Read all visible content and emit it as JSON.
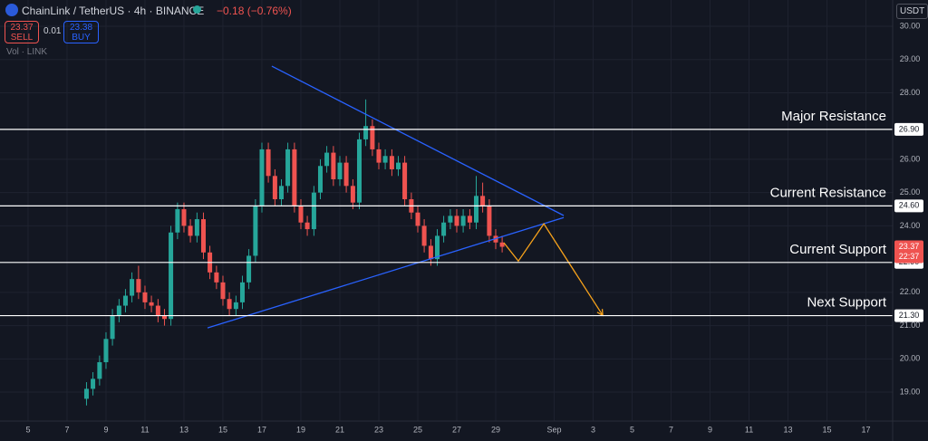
{
  "header": {
    "symbol": "ChainLink / TetherUS · 4h · BINANCE",
    "change": "−0.18 (−0.76%)",
    "sell_price": "23.37",
    "sell": "SELL",
    "spread": "0.01",
    "buy_price": "23.38",
    "buy": "BUY",
    "volume": "Vol · LINK",
    "currency": "USDT",
    "countdown": "22:37"
  },
  "chart_data": {
    "type": "candlestick",
    "x": [
      8,
      8.33,
      8.67,
      9,
      9.33,
      9.67,
      10,
      10.33,
      10.67,
      11,
      11.33,
      11.67,
      12,
      12.33,
      12.67,
      13,
      13.33,
      13.67,
      14,
      14.33,
      14.67,
      15,
      15.33,
      15.67,
      16,
      16.33,
      16.67,
      17,
      17.33,
      17.67,
      18,
      18.33,
      18.67,
      19,
      19.33,
      19.67,
      20,
      20.33,
      20.67,
      21,
      21.33,
      21.67,
      22,
      22.33,
      22.67,
      23,
      23.33,
      23.67,
      24,
      24.33,
      24.67,
      25,
      25.33,
      25.67,
      26,
      26.33,
      26.67,
      27,
      27.33,
      27.67,
      28,
      28.33,
      28.67,
      29,
      29.33
    ],
    "open": [
      18.8,
      19.1,
      19.4,
      19.9,
      20.6,
      21.3,
      21.6,
      21.9,
      22.4,
      22.0,
      21.7,
      21.6,
      21.3,
      21.2,
      23.8,
      24.5,
      24.0,
      23.7,
      24.2,
      23.2,
      22.6,
      22.3,
      21.8,
      21.5,
      21.7,
      22.3,
      23.1,
      24.6,
      26.3,
      25.5,
      24.8,
      25.2,
      26.3,
      24.6,
      24.1,
      23.9,
      25.0,
      25.8,
      26.2,
      25.4,
      25.9,
      25.2,
      24.7,
      26.6,
      27.0,
      26.3,
      25.9,
      26.1,
      25.7,
      25.9,
      24.8,
      24.4,
      24.0,
      23.4,
      23.0,
      23.7,
      24.1,
      24.3,
      24.0,
      24.3,
      24.1,
      24.9,
      24.6,
      23.7,
      23.5
    ],
    "high": [
      19.3,
      19.6,
      20.1,
      20.8,
      21.5,
      21.8,
      22.1,
      22.6,
      22.8,
      22.2,
      21.9,
      21.8,
      21.5,
      24.0,
      24.7,
      24.7,
      24.2,
      24.4,
      24.4,
      23.4,
      22.8,
      22.5,
      22.0,
      21.9,
      22.5,
      23.3,
      24.8,
      26.5,
      26.5,
      25.7,
      25.4,
      26.5,
      26.5,
      24.8,
      24.3,
      25.2,
      26.0,
      26.4,
      26.4,
      26.1,
      26.1,
      25.4,
      26.8,
      27.8,
      27.2,
      26.5,
      26.3,
      26.3,
      26.1,
      26.1,
      25.0,
      24.6,
      24.2,
      23.6,
      23.9,
      24.3,
      24.5,
      24.5,
      24.5,
      24.5,
      25.5,
      25.3,
      24.8,
      23.9,
      23.7
    ],
    "low": [
      18.6,
      18.9,
      19.2,
      19.7,
      20.4,
      21.1,
      21.4,
      21.7,
      21.8,
      21.5,
      21.4,
      21.1,
      21.0,
      21.0,
      23.6,
      23.8,
      23.5,
      23.5,
      23.0,
      22.4,
      22.1,
      21.6,
      21.3,
      21.3,
      21.5,
      22.1,
      22.9,
      24.4,
      25.3,
      24.6,
      24.6,
      25.0,
      24.4,
      23.9,
      23.7,
      23.7,
      24.8,
      25.6,
      25.2,
      25.2,
      25.0,
      24.5,
      24.5,
      26.4,
      26.1,
      25.7,
      25.7,
      25.5,
      25.5,
      24.6,
      24.2,
      23.8,
      23.2,
      22.8,
      22.8,
      23.5,
      23.9,
      23.8,
      23.8,
      23.9,
      23.9,
      24.4,
      23.5,
      23.3,
      23.2
    ],
    "close": [
      19.1,
      19.4,
      19.9,
      20.6,
      21.3,
      21.6,
      21.9,
      22.4,
      22.0,
      21.7,
      21.6,
      21.3,
      21.2,
      23.8,
      24.5,
      24.0,
      23.7,
      24.2,
      23.2,
      22.6,
      22.3,
      21.8,
      21.5,
      21.7,
      22.3,
      23.1,
      24.6,
      26.3,
      25.5,
      24.8,
      25.2,
      26.3,
      24.6,
      24.1,
      23.9,
      25.0,
      25.8,
      26.2,
      25.4,
      25.9,
      25.2,
      24.7,
      26.6,
      27.0,
      26.3,
      25.9,
      26.1,
      25.7,
      25.9,
      24.8,
      24.4,
      24.0,
      23.4,
      23.0,
      23.7,
      24.1,
      24.3,
      24.0,
      24.3,
      24.1,
      24.9,
      24.6,
      23.7,
      23.5,
      23.37
    ],
    "up_color": "#26a69a",
    "down_color": "#ef5350",
    "xlim": [
      3.56,
      49.37
    ],
    "ylim": [
      18.13,
      30.79
    ],
    "xticks": [
      5,
      7,
      9,
      11,
      13,
      15,
      17,
      19,
      21,
      23,
      25,
      27,
      29,
      {
        "value": 32,
        "label": "Sep"
      },
      {
        "value": 34,
        "label": "3"
      },
      {
        "value": 36,
        "label": "5"
      },
      {
        "value": 38,
        "label": "7"
      },
      {
        "value": 40,
        "label": "9"
      },
      {
        "value": 42,
        "label": "11"
      },
      {
        "value": 44,
        "label": "13"
      },
      {
        "value": 46,
        "label": "15"
      },
      {
        "value": 48,
        "label": "17"
      }
    ],
    "yticks": [
      {
        "value": 19,
        "label": "19.00"
      },
      {
        "value": 20,
        "label": "20.00"
      },
      {
        "value": 21,
        "label": "21.00"
      },
      {
        "value": 22,
        "label": "22.00"
      },
      {
        "value": 24,
        "label": "24.00"
      },
      {
        "value": 25,
        "label": "25.00"
      },
      {
        "value": 26,
        "label": "26.00"
      },
      {
        "value": 28,
        "label": "28.00"
      },
      {
        "value": 29,
        "label": "29.00"
      },
      {
        "value": 30,
        "label": "30.00"
      }
    ],
    "grid": true,
    "levels": [
      {
        "value": 26.9,
        "label": "Major Resistance",
        "price_label": "26.90"
      },
      {
        "value": 24.6,
        "label": "Current Resistance",
        "price_label": "24.60"
      },
      {
        "value": 22.9,
        "label": "Current Support",
        "price_label": "22.90"
      },
      {
        "value": 21.3,
        "label": "Next Support",
        "price_label": "21.30"
      }
    ],
    "level_color": "#ffffff",
    "trendlines": [
      {
        "x": [
          17.51,
          32.49
        ],
        "y": [
          28.8,
          24.31
        ]
      },
      {
        "x": [
          14.21,
          32.49
        ],
        "y": [
          20.93,
          24.25
        ]
      }
    ],
    "trendline_color": "#2962ff",
    "projection": {
      "x": [
        29.42,
        30.16,
        31.47,
        34.49
      ],
      "y": [
        23.49,
        22.94,
        24.06,
        21.31
      ],
      "color": "#f7a21b"
    },
    "last_price": {
      "value": 23.37,
      "label": "23.37"
    }
  }
}
